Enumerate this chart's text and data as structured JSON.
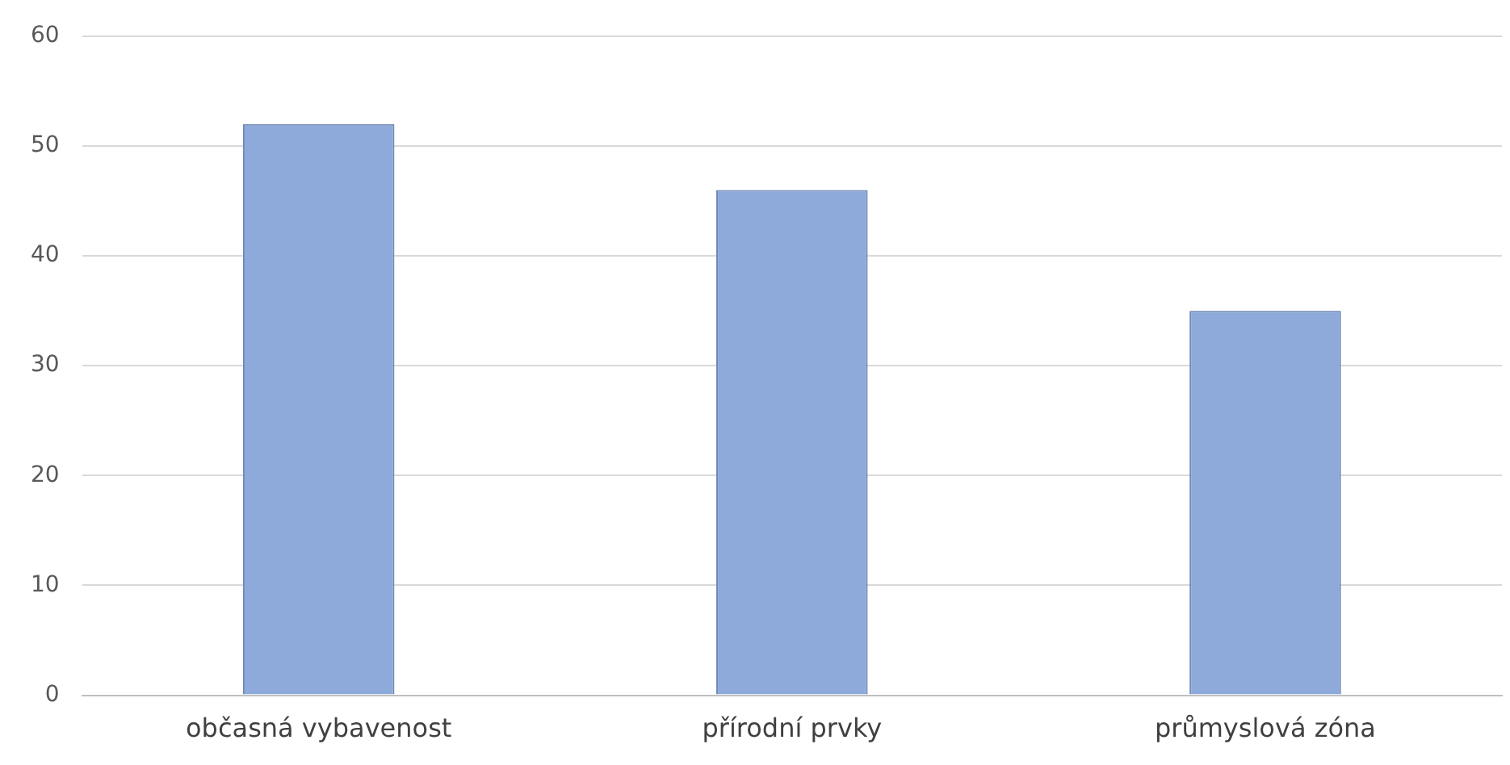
{
  "chart_data": {
    "type": "bar",
    "categories": [
      "občasná vybavenost",
      "přírodní prvky",
      "průmyslová zóna"
    ],
    "values": [
      52,
      46,
      35
    ],
    "color": "#8eaadb",
    "ylim": [
      0,
      60
    ],
    "yticks": [
      0,
      10,
      20,
      30,
      40,
      50,
      60
    ],
    "grid": "y",
    "legend": false
  }
}
